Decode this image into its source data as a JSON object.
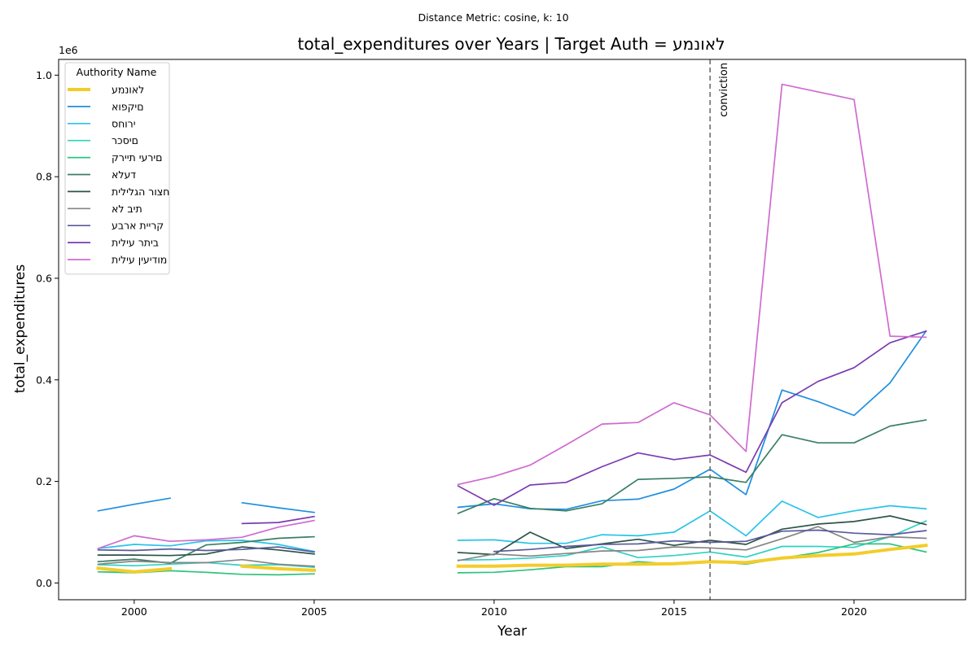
{
  "suptitle": "Distance Metric: cosine, k: 10",
  "chart_data": {
    "type": "line",
    "title": "total_expenditures over Years | Target Auth = לאונמע",
    "xlabel": "Year",
    "ylabel": "total_expenditures",
    "y_multiplier_label": "1e6",
    "xlim": [
      1997.9,
      2023.1
    ],
    "ylim": [
      -0.033,
      1.031
    ],
    "xticks": [
      2000,
      2005,
      2010,
      2015,
      2020
    ],
    "yticks": [
      0.0,
      0.2,
      0.4,
      0.6,
      0.8,
      1.0
    ],
    "ytick_labels": [
      "0.0",
      "0.2",
      "0.4",
      "0.6",
      "0.8",
      "1.0"
    ],
    "legend": {
      "title": "Authority Name",
      "placement": "upper-left"
    },
    "vline": {
      "x": 2016,
      "label": "conviction",
      "style": "dashed",
      "color": "#707070"
    },
    "x": [
      1999,
      2000,
      2001,
      2002,
      2003,
      2004,
      2005,
      2006,
      2007,
      2008,
      2009,
      2010,
      2011,
      2012,
      2013,
      2014,
      2015,
      2016,
      2017,
      2018,
      2019,
      2020,
      2021,
      2022
    ],
    "series": [
      {
        "name": "לאונמע",
        "color": "#f2cd2a",
        "width": 4,
        "target": true,
        "values": [
          0.029,
          0.022,
          0.028,
          null,
          0.033,
          0.028,
          0.025,
          null,
          null,
          null,
          0.033,
          0.033,
          0.035,
          0.035,
          0.037,
          0.037,
          0.038,
          0.042,
          0.04,
          0.049,
          0.054,
          0.057,
          0.066,
          0.074
        ]
      },
      {
        "name": "םיקפוא",
        "color": "#1f8fe0",
        "width": 1.7,
        "values": [
          0.142,
          0.155,
          0.167,
          null,
          0.158,
          0.148,
          0.139,
          null,
          null,
          null,
          0.149,
          0.156,
          0.146,
          0.145,
          0.162,
          0.165,
          0.185,
          0.224,
          0.174,
          0.38,
          0.357,
          0.33,
          0.394,
          0.496
        ]
      },
      {
        "name": "ירוחס",
        "color": "#29c3e8",
        "width": 1.7,
        "values": [
          0.068,
          0.076,
          0.073,
          0.083,
          0.084,
          0.076,
          0.062,
          null,
          null,
          null,
          0.084,
          0.085,
          0.078,
          0.078,
          0.095,
          0.093,
          0.1,
          0.142,
          0.093,
          0.161,
          0.129,
          0.142,
          0.152,
          0.146
        ]
      },
      {
        "name": "םיסכר",
        "color": "#2ed1c6",
        "width": 1.7,
        "values": [
          0.036,
          0.034,
          0.037,
          0.04,
          0.035,
          0.036,
          0.031,
          null,
          null,
          null,
          0.045,
          0.046,
          0.049,
          0.054,
          0.071,
          0.05,
          0.054,
          0.061,
          0.051,
          0.072,
          0.072,
          0.07,
          0.091,
          0.122
        ]
      },
      {
        "name": "םירעי תיירק",
        "color": "#2ec27e",
        "width": 1.7,
        "values": [
          0.022,
          0.02,
          0.024,
          0.021,
          0.017,
          0.016,
          0.018,
          null,
          null,
          null,
          0.02,
          0.021,
          0.026,
          0.032,
          0.032,
          0.042,
          0.037,
          0.043,
          0.037,
          0.049,
          0.06,
          0.077,
          0.077,
          0.061
        ]
      },
      {
        "name": "דעלא",
        "color": "#3b7f63",
        "width": 1.7,
        "values": [
          0.042,
          0.047,
          0.039,
          0.075,
          0.08,
          0.088,
          0.091,
          null,
          null,
          null,
          0.137,
          0.166,
          0.147,
          0.142,
          0.156,
          0.204,
          0.206,
          0.209,
          0.198,
          0.292,
          0.276,
          0.276,
          0.309,
          0.321
        ]
      },
      {
        "name": "חצור הגלילית",
        "color": "#2d5448",
        "width": 1.7,
        "values": [
          0.055,
          0.055,
          0.054,
          0.057,
          0.071,
          0.065,
          0.057,
          null,
          null,
          null,
          0.06,
          0.056,
          0.1,
          0.068,
          0.077,
          0.086,
          0.074,
          0.084,
          0.076,
          0.106,
          0.116,
          0.121,
          0.132,
          0.115
        ]
      },
      {
        "name": "תיב לא",
        "color": "#858585",
        "width": 1.7,
        "values": [
          0.037,
          0.043,
          0.04,
          0.04,
          0.046,
          0.037,
          0.033,
          null,
          null,
          null,
          0.044,
          0.057,
          0.053,
          0.058,
          0.063,
          0.064,
          0.071,
          0.069,
          0.065,
          0.087,
          0.111,
          0.08,
          0.091,
          0.088
        ]
      },
      {
        "name": "קריית ארבע",
        "color": "#5a5a9c",
        "width": 1.7,
        "values": [
          0.065,
          0.064,
          0.067,
          0.064,
          0.066,
          0.071,
          0.061,
          null,
          null,
          null,
          null,
          0.062,
          0.066,
          0.072,
          0.076,
          0.077,
          0.083,
          0.08,
          0.082,
          0.102,
          0.104,
          0.098,
          0.095,
          0.103
        ]
      },
      {
        "name": "ביתר עילית",
        "color": "#7b3bb0",
        "width": 1.7,
        "values": [
          null,
          null,
          null,
          null,
          0.117,
          0.119,
          0.131,
          null,
          null,
          null,
          0.191,
          0.153,
          0.193,
          0.198,
          0.229,
          0.256,
          0.243,
          0.252,
          0.218,
          0.355,
          0.397,
          0.424,
          0.473,
          0.496
        ]
      },
      {
        "name": "מודיעין עילית",
        "color": "#cf6bd0",
        "width": 1.7,
        "values": [
          0.068,
          0.093,
          0.082,
          0.085,
          0.09,
          0.11,
          0.123,
          null,
          null,
          null,
          0.194,
          0.21,
          0.232,
          0.272,
          0.313,
          0.316,
          0.355,
          0.331,
          0.259,
          0.982,
          0.967,
          0.952,
          0.486,
          0.484
        ]
      }
    ]
  }
}
